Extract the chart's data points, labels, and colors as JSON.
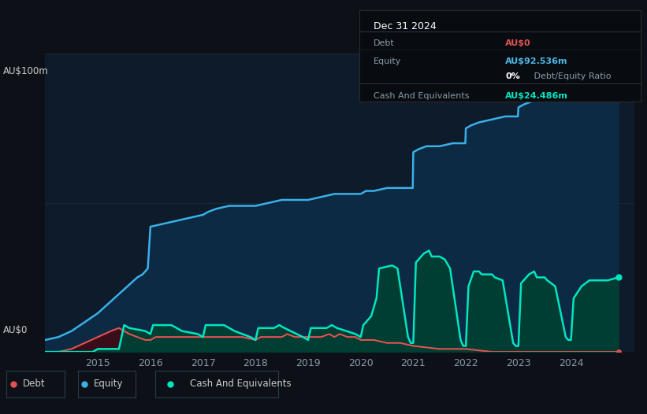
{
  "background_color": "#0d1117",
  "plot_bg_color": "#0d1b2a",
  "title_box": {
    "date": "Dec 31 2024",
    "debt_label": "Debt",
    "debt_value": "AU$0",
    "debt_color": "#e05252",
    "equity_label": "Equity",
    "equity_value": "AU$92.536m",
    "equity_color": "#4db8e8",
    "ratio_bold": "0%",
    "ratio_rest": " Debt/Equity Ratio",
    "cash_label": "Cash And Equivalents",
    "cash_value": "AU$24.486m",
    "cash_color": "#00e5c0",
    "box_bg": "#080c10",
    "box_border": "#2a2a2a"
  },
  "y_label_top": "AU$100m",
  "y_label_bot": "AU$0",
  "x_ticks": [
    2015,
    2016,
    2017,
    2018,
    2019,
    2020,
    2021,
    2022,
    2023,
    2024
  ],
  "equity_color": "#3ab0e8",
  "equity_fill": "#0d2a45",
  "debt_color": "#e05252",
  "debt_fill": "#3a0d1a",
  "cash_color": "#00e5c0",
  "cash_fill": "#003d32",
  "equity_data": {
    "x": [
      2014.0,
      2014.25,
      2014.5,
      2014.75,
      2015.0,
      2015.25,
      2015.5,
      2015.75,
      2015.85,
      2015.95,
      2016.0,
      2016.25,
      2016.5,
      2016.75,
      2017.0,
      2017.1,
      2017.25,
      2017.5,
      2017.75,
      2018.0,
      2018.25,
      2018.5,
      2018.75,
      2019.0,
      2019.25,
      2019.5,
      2019.75,
      2020.0,
      2020.1,
      2020.25,
      2020.5,
      2020.75,
      2020.99,
      2021.0,
      2021.1,
      2021.25,
      2021.5,
      2021.75,
      2021.99,
      2022.0,
      2022.1,
      2022.25,
      2022.5,
      2022.75,
      2022.99,
      2023.0,
      2023.1,
      2023.25,
      2023.5,
      2023.75,
      2023.99,
      2024.0,
      2024.1,
      2024.25,
      2024.5,
      2024.75,
      2024.9
    ],
    "y": [
      4,
      5,
      7,
      10,
      13,
      17,
      21,
      25,
      26,
      28,
      42,
      43,
      44,
      45,
      46,
      47,
      48,
      49,
      49,
      49,
      50,
      51,
      51,
      51,
      52,
      53,
      53,
      53,
      54,
      54,
      55,
      55,
      55,
      67,
      68,
      69,
      69,
      70,
      70,
      75,
      76,
      77,
      78,
      79,
      79,
      82,
      83,
      84,
      85,
      86,
      86,
      88,
      89,
      90,
      91,
      92,
      93
    ]
  },
  "debt_data": {
    "x": [
      2014.0,
      2014.25,
      2014.5,
      2014.75,
      2015.0,
      2015.25,
      2015.4,
      2015.5,
      2015.6,
      2015.75,
      2015.9,
      2016.0,
      2016.1,
      2016.25,
      2016.5,
      2016.75,
      2017.0,
      2017.25,
      2017.5,
      2017.75,
      2018.0,
      2018.1,
      2018.25,
      2018.5,
      2018.6,
      2018.75,
      2018.9,
      2019.0,
      2019.1,
      2019.25,
      2019.4,
      2019.5,
      2019.6,
      2019.75,
      2019.9,
      2020.0,
      2020.25,
      2020.5,
      2020.75,
      2021.0,
      2021.5,
      2022.0,
      2022.5,
      2023.0,
      2023.5,
      2024.0,
      2024.9
    ],
    "y": [
      0,
      0,
      1,
      3,
      5,
      7,
      8,
      7,
      6,
      5,
      4,
      4,
      5,
      5,
      5,
      5,
      5,
      5,
      5,
      5,
      4,
      5,
      5,
      5,
      6,
      5,
      5,
      5,
      5,
      5,
      6,
      5,
      6,
      5,
      5,
      4,
      4,
      3,
      3,
      2,
      1,
      1,
      0,
      0,
      0,
      0,
      0
    ]
  },
  "cash_data": {
    "x": [
      2014.0,
      2014.9,
      2015.0,
      2015.4,
      2015.5,
      2015.6,
      2015.9,
      2016.0,
      2016.05,
      2016.4,
      2016.5,
      2016.6,
      2016.9,
      2017.0,
      2017.05,
      2017.4,
      2017.5,
      2017.6,
      2017.9,
      2018.0,
      2018.05,
      2018.35,
      2018.45,
      2018.55,
      2018.9,
      2019.0,
      2019.05,
      2019.35,
      2019.45,
      2019.55,
      2019.9,
      2020.0,
      2020.05,
      2020.2,
      2020.3,
      2020.35,
      2020.6,
      2020.7,
      2020.9,
      2020.95,
      2021.0,
      2021.05,
      2021.2,
      2021.3,
      2021.35,
      2021.5,
      2021.6,
      2021.7,
      2021.9,
      2021.95,
      2022.0,
      2022.05,
      2022.15,
      2022.25,
      2022.3,
      2022.5,
      2022.55,
      2022.7,
      2022.9,
      2022.95,
      2023.0,
      2023.05,
      2023.2,
      2023.3,
      2023.35,
      2023.5,
      2023.55,
      2023.7,
      2023.9,
      2023.95,
      2024.0,
      2024.05,
      2024.2,
      2024.35,
      2024.5,
      2024.7,
      2024.9
    ],
    "y": [
      0,
      0,
      1,
      1,
      9,
      8,
      7,
      6,
      9,
      9,
      8,
      7,
      6,
      5,
      9,
      9,
      8,
      7,
      5,
      4,
      8,
      8,
      9,
      8,
      5,
      4,
      8,
      8,
      9,
      8,
      6,
      5,
      9,
      12,
      18,
      28,
      29,
      28,
      5,
      3,
      3,
      30,
      33,
      34,
      32,
      32,
      31,
      28,
      4,
      2,
      2,
      22,
      27,
      27,
      26,
      26,
      25,
      24,
      3,
      2,
      2,
      23,
      26,
      27,
      25,
      25,
      24,
      22,
      5,
      4,
      4,
      18,
      22,
      24,
      24,
      24,
      25
    ]
  },
  "ylim": [
    0,
    100
  ],
  "xlim": [
    2014.0,
    2025.2
  ],
  "grid_color": "#1c3040",
  "legend_items": [
    "Debt",
    "Equity",
    "Cash And Equivalents"
  ],
  "legend_colors": [
    "#e05252",
    "#3ab0e8",
    "#00e5c0"
  ]
}
